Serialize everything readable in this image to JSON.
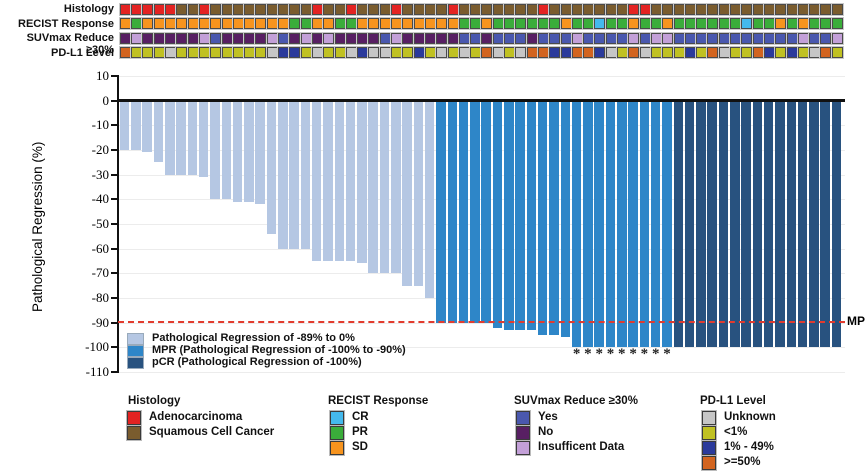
{
  "annotation": {
    "palette": {
      "ADC": "#e32322",
      "SCC": "#7a5c2e",
      "CR": "#44b9ed",
      "PR": "#3aad3a",
      "SD": "#f7941e",
      "YES": "#4a58ae",
      "NO": "#581f63",
      "INS": "#c3a0d8",
      "UNK": "#c6c6c6",
      "LT1": "#c0c122",
      "P1_49": "#2b3a9b",
      "GE50": "#d2641f"
    },
    "rows": [
      {
        "label": "Histology",
        "values": [
          "ADC",
          "ADC",
          "ADC",
          "ADC",
          "ADC",
          "SCC",
          "SCC",
          "ADC",
          "SCC",
          "SCC",
          "SCC",
          "SCC",
          "SCC",
          "SCC",
          "SCC",
          "SCC",
          "SCC",
          "ADC",
          "SCC",
          "SCC",
          "ADC",
          "SCC",
          "SCC",
          "SCC",
          "ADC",
          "SCC",
          "SCC",
          "SCC",
          "SCC",
          "ADC",
          "SCC",
          "SCC",
          "SCC",
          "SCC",
          "SCC",
          "SCC",
          "SCC",
          "ADC",
          "SCC",
          "SCC",
          "SCC",
          "SCC",
          "SCC",
          "SCC",
          "SCC",
          "ADC",
          "ADC",
          "SCC",
          "SCC",
          "SCC",
          "SCC",
          "SCC",
          "SCC",
          "SCC",
          "SCC",
          "SCC",
          "SCC",
          "SCC",
          "SCC",
          "SCC",
          "SCC",
          "SCC",
          "SCC",
          "SCC"
        ]
      },
      {
        "label": "RECIST Response",
        "values": [
          "SD",
          "PR",
          "SD",
          "SD",
          "SD",
          "SD",
          "SD",
          "SD",
          "SD",
          "SD",
          "SD",
          "SD",
          "SD",
          "SD",
          "SD",
          "PR",
          "PR",
          "SD",
          "SD",
          "PR",
          "PR",
          "SD",
          "SD",
          "SD",
          "SD",
          "SD",
          "SD",
          "SD",
          "SD",
          "SD",
          "PR",
          "PR",
          "SD",
          "PR",
          "PR",
          "PR",
          "PR",
          "PR",
          "PR",
          "SD",
          "PR",
          "PR",
          "CR",
          "PR",
          "PR",
          "SD",
          "PR",
          "PR",
          "SD",
          "PR",
          "PR",
          "PR",
          "PR",
          "PR",
          "PR",
          "CR",
          "PR",
          "PR",
          "SD",
          "PR",
          "SD",
          "PR",
          "PR",
          "PR"
        ]
      },
      {
        "label": "SUVmax Reduce ≥30%",
        "values": [
          "NO",
          "INS",
          "NO",
          "NO",
          "NO",
          "NO",
          "NO",
          "INS",
          "YES",
          "NO",
          "NO",
          "NO",
          "NO",
          "INS",
          "YES",
          "NO",
          "INS",
          "NO",
          "INS",
          "NO",
          "NO",
          "NO",
          "NO",
          "YES",
          "INS",
          "NO",
          "NO",
          "NO",
          "NO",
          "NO",
          "YES",
          "YES",
          "NO",
          "YES",
          "YES",
          "YES",
          "NO",
          "YES",
          "YES",
          "YES",
          "INS",
          "YES",
          "YES",
          "YES",
          "YES",
          "INS",
          "YES",
          "INS",
          "INS",
          "YES",
          "YES",
          "YES",
          "YES",
          "YES",
          "YES",
          "YES",
          "YES",
          "YES",
          "YES",
          "YES",
          "INS",
          "YES",
          "YES",
          "INS"
        ]
      },
      {
        "label": "PD-L1 Level",
        "values": [
          "GE50",
          "LT1",
          "LT1",
          "LT1",
          "UNK",
          "LT1",
          "LT1",
          "LT1",
          "LT1",
          "LT1",
          "LT1",
          "LT1",
          "LT1",
          "UNK",
          "P1_49",
          "P1_49",
          "LT1",
          "UNK",
          "LT1",
          "LT1",
          "UNK",
          "P1_49",
          "UNK",
          "UNK",
          "LT1",
          "LT1",
          "P1_49",
          "LT1",
          "UNK",
          "LT1",
          "UNK",
          "LT1",
          "GE50",
          "UNK",
          "LT1",
          "UNK",
          "GE50",
          "GE50",
          "P1_49",
          "P1_49",
          "GE50",
          "GE50",
          "P1_49",
          "UNK",
          "LT1",
          "GE50",
          "UNK",
          "LT1",
          "LT1",
          "LT1",
          "P1_49",
          "LT1",
          "GE50",
          "UNK",
          "LT1",
          "LT1",
          "GE50",
          "P1_49",
          "LT1",
          "P1_49",
          "LT1",
          "UNK",
          "GE50",
          "LT1"
        ]
      }
    ]
  },
  "chart_data": {
    "type": "bar",
    "ylabel": "Pathological Regression (%)",
    "ylim": [
      -110,
      10
    ],
    "yticks": [
      10,
      0,
      -10,
      -20,
      -30,
      -40,
      -50,
      -60,
      -70,
      -80,
      -90,
      -100,
      -110
    ],
    "grid": "horizontal-light",
    "n_bars": 64,
    "values": [
      -20,
      -20,
      -21,
      -25,
      -30,
      -30,
      -30,
      -31,
      -40,
      -40,
      -41,
      -41,
      -42,
      -54,
      -60,
      -60,
      -60,
      -65,
      -65,
      -65,
      -65,
      -66,
      -70,
      -70,
      -70,
      -75,
      -75,
      -80,
      -90,
      -90,
      -90,
      -90,
      -90,
      -92,
      -93,
      -93,
      -93,
      -95,
      -95,
      -96,
      -100,
      -100,
      -100,
      -100,
      -100,
      -100,
      -100,
      -100,
      -100,
      -100,
      -100,
      -100,
      -100,
      -100,
      -100,
      -100,
      -100,
      -100,
      -100,
      -100,
      -100,
      -100,
      -100,
      -100
    ],
    "classes": [
      "PR89",
      "PR89",
      "PR89",
      "PR89",
      "PR89",
      "PR89",
      "PR89",
      "PR89",
      "PR89",
      "PR89",
      "PR89",
      "PR89",
      "PR89",
      "PR89",
      "PR89",
      "PR89",
      "PR89",
      "PR89",
      "PR89",
      "PR89",
      "PR89",
      "PR89",
      "PR89",
      "PR89",
      "PR89",
      "PR89",
      "PR89",
      "PR89",
      "MPR",
      "MPR",
      "MPR",
      "MPR",
      "MPR",
      "MPR",
      "MPR",
      "MPR",
      "MPR",
      "MPR",
      "MPR",
      "MPR",
      "MPR",
      "MPR",
      "MPR",
      "MPR",
      "MPR",
      "MPR",
      "MPR",
      "MPR",
      "MPR",
      "PCR",
      "PCR",
      "PCR",
      "PCR",
      "PCR",
      "PCR",
      "PCR",
      "PCR",
      "PCR",
      "PCR",
      "PCR",
      "PCR",
      "PCR",
      "PCR",
      "PCR"
    ],
    "class_colors": {
      "PR89": "#b5c7e3",
      "MPR": "#2e86c8",
      "PCR": "#28527f"
    },
    "bar_legend": [
      {
        "class": "PR89",
        "label": "Pathological Regression of -89% to 0%"
      },
      {
        "class": "MPR",
        "label": "MPR (Pathological Regression of -100% to -90%)"
      },
      {
        "class": "PCR",
        "label": "pCR (Pathological Regression of -100%)"
      }
    ],
    "reference_line": {
      "y": -90,
      "label": "MPR",
      "color": "#e23b2e",
      "style": "dashed"
    },
    "starred_columns": [
      41,
      42,
      43,
      44,
      45,
      46,
      47,
      48,
      49
    ],
    "star_symbol": "*",
    "legend_position": "inside-bottom-left"
  },
  "legends": [
    {
      "title": "Histology",
      "items": [
        {
          "label": "Adenocarcinoma",
          "code": "ADC"
        },
        {
          "label": "Squamous Cell Cancer",
          "code": "SCC"
        }
      ]
    },
    {
      "title": "RECIST Response",
      "items": [
        {
          "label": "CR",
          "code": "CR"
        },
        {
          "label": "PR",
          "code": "PR"
        },
        {
          "label": "SD",
          "code": "SD"
        }
      ]
    },
    {
      "title": "SUVmax Reduce ≥30%",
      "items": [
        {
          "label": "Yes",
          "code": "YES"
        },
        {
          "label": "No",
          "code": "NO"
        },
        {
          "label": "Insufficent Data",
          "code": "INS"
        }
      ]
    },
    {
      "title": "PD-L1 Level",
      "items": [
        {
          "label": "Unknown",
          "code": "UNK"
        },
        {
          "label": "<1%",
          "code": "LT1"
        },
        {
          "label": "1% - 49%",
          "code": "P1_49"
        },
        {
          "label": ">=50%",
          "code": "GE50"
        }
      ]
    }
  ]
}
